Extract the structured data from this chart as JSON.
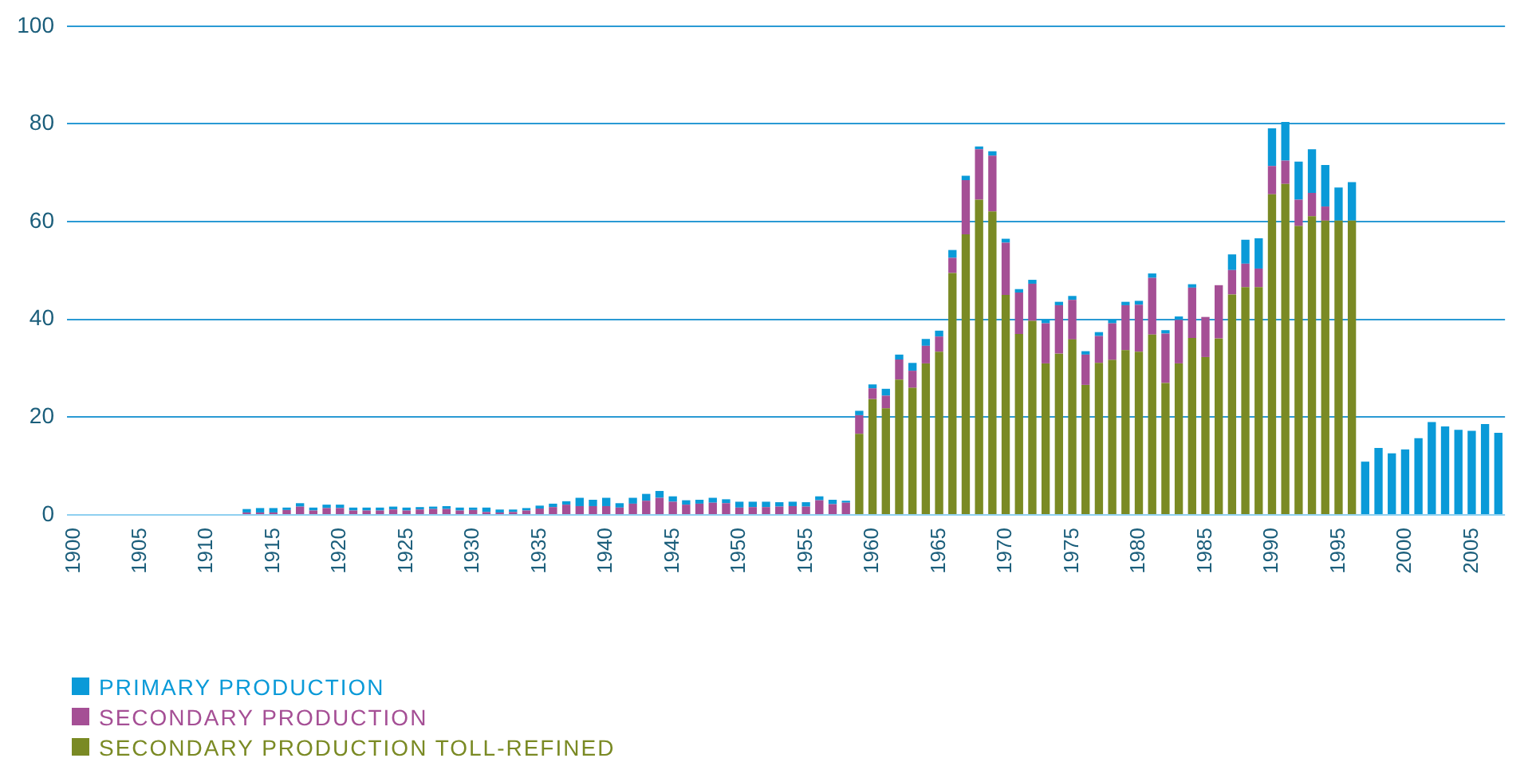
{
  "chart_data": {
    "type": "bar",
    "stacked": true,
    "categories": [
      "1900",
      null,
      null,
      null,
      null,
      "1905",
      null,
      null,
      null,
      null,
      "1910",
      null,
      null,
      null,
      null,
      "1915",
      null,
      null,
      null,
      null,
      "1920",
      null,
      null,
      null,
      null,
      "1925",
      null,
      null,
      null,
      null,
      "1930",
      null,
      null,
      null,
      null,
      "1935",
      null,
      null,
      null,
      null,
      "1940",
      null,
      null,
      null,
      null,
      "1945",
      null,
      null,
      null,
      null,
      "1950",
      null,
      null,
      null,
      null,
      "1955",
      null,
      null,
      null,
      null,
      "1960",
      null,
      null,
      null,
      null,
      "1965",
      null,
      null,
      null,
      null,
      "1970",
      null,
      null,
      null,
      null,
      "1975",
      null,
      null,
      null,
      null,
      "1980",
      null,
      null,
      null,
      null,
      "1985",
      null,
      null,
      null,
      null,
      "1990",
      null,
      null,
      null,
      null,
      "1995",
      null,
      null,
      null,
      null,
      "2000",
      null,
      null,
      null,
      null,
      "2005",
      null,
      null
    ],
    "series": [
      {
        "name": "SECONDARY PRODUCTION TOLL-REFINED",
        "color": "#7a8a24",
        "values": [
          null,
          null,
          null,
          null,
          null,
          null,
          null,
          null,
          null,
          null,
          null,
          null,
          null,
          null,
          null,
          null,
          null,
          null,
          null,
          null,
          null,
          null,
          null,
          null,
          null,
          null,
          null,
          null,
          null,
          null,
          null,
          null,
          null,
          null,
          null,
          null,
          null,
          null,
          null,
          null,
          null,
          null,
          null,
          null,
          null,
          null,
          null,
          null,
          null,
          null,
          null,
          null,
          null,
          null,
          null,
          null,
          null,
          null,
          null,
          16.6,
          23.7,
          21.8,
          27.7,
          26.0,
          31.0,
          33.4,
          49.5,
          57.4,
          64.5,
          62.1,
          45.0,
          37.0,
          39.7,
          31.0,
          33.0,
          35.9,
          26.6,
          31.1,
          31.7,
          33.7,
          33.4,
          36.9,
          27.0,
          31.0,
          36.2,
          32.3,
          36.1,
          45.1,
          46.6,
          46.6,
          65.6,
          67.7,
          59.1,
          61.1,
          60.2,
          60.2,
          60.2,
          null,
          null,
          null,
          null,
          null,
          null,
          null,
          null,
          null,
          null,
          null
        ]
      },
      {
        "name": "SECONDARY PRODUCTION",
        "color": "#a54f95",
        "values": [
          null,
          null,
          null,
          null,
          null,
          null,
          null,
          null,
          null,
          null,
          null,
          null,
          null,
          0.5,
          0.5,
          0.5,
          1.0,
          1.7,
          0.9,
          1.4,
          1.4,
          0.9,
          0.9,
          0.9,
          1.1,
          0.9,
          1.1,
          1.2,
          1.2,
          0.9,
          1.0,
          0.6,
          0.5,
          0.6,
          0.9,
          1.3,
          1.6,
          2.1,
          1.8,
          1.8,
          1.8,
          1.5,
          2.3,
          2.9,
          3.5,
          2.7,
          2.1,
          2.3,
          2.5,
          2.4,
          1.5,
          1.6,
          1.6,
          1.7,
          1.8,
          1.7,
          3.0,
          2.2,
          2.5,
          3.8,
          2.2,
          2.6,
          4.1,
          3.5,
          3.6,
          3.1,
          3.1,
          11.1,
          10.3,
          11.4,
          10.7,
          8.5,
          7.6,
          8.2,
          9.9,
          8.1,
          6.2,
          5.5,
          7.5,
          9.2,
          9.6,
          11.6,
          10.1,
          8.9,
          10.3,
          8.2,
          10.9,
          5.0,
          4.8,
          3.8,
          5.8,
          4.8,
          5.4,
          4.8,
          2.9,
          null,
          null,
          null,
          null,
          null,
          null,
          null,
          null,
          null,
          null,
          null,
          null,
          null
        ]
      },
      {
        "name": "PRIMARY PRODUCTION",
        "color": "#0a9ad8",
        "values": [
          null,
          null,
          null,
          null,
          null,
          null,
          null,
          null,
          null,
          null,
          null,
          null,
          null,
          0.7,
          0.9,
          0.9,
          0.5,
          0.7,
          0.6,
          0.7,
          0.7,
          0.6,
          0.6,
          0.6,
          0.6,
          0.6,
          0.5,
          0.5,
          0.6,
          0.6,
          0.5,
          0.9,
          0.6,
          0.5,
          0.5,
          0.6,
          0.7,
          0.7,
          1.7,
          1.3,
          1.7,
          0.9,
          1.2,
          1.4,
          1.4,
          1.1,
          0.9,
          0.8,
          1.0,
          0.8,
          1.2,
          1.1,
          1.1,
          0.9,
          0.9,
          0.9,
          0.8,
          0.9,
          0.4,
          0.9,
          0.8,
          1.4,
          1.0,
          1.6,
          1.4,
          1.2,
          1.6,
          0.9,
          0.6,
          0.9,
          0.8,
          0.7,
          0.8,
          0.8,
          0.7,
          0.8,
          0.7,
          0.8,
          0.8,
          0.7,
          0.8,
          0.9,
          0.7,
          0.7,
          0.7,
          null,
          null,
          3.2,
          4.9,
          6.2,
          7.7,
          7.9,
          7.8,
          8.9,
          8.5,
          6.8,
          7.9,
          10.9,
          13.7,
          12.6,
          13.4,
          15.7,
          19.0,
          18.1,
          17.4,
          17.2,
          18.6,
          16.8
        ]
      }
    ],
    "ylim": [
      0,
      100
    ],
    "yticks": [
      0,
      20,
      40,
      60,
      80,
      100
    ],
    "grid": "y",
    "legend": "bottom left"
  }
}
